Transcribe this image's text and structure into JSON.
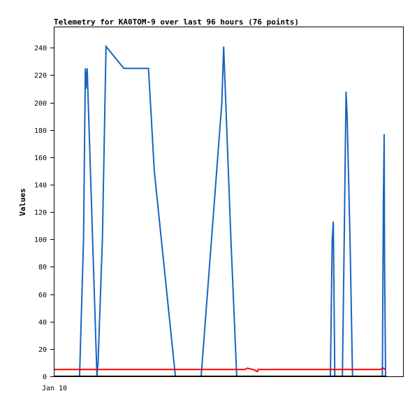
{
  "chart_data": {
    "type": "line",
    "title": "Telemetry for KA0TOM-9 over last 96 hours (76 points)",
    "xlabel": "",
    "ylabel": "Values",
    "x_tick_labels": [
      "Jan 10"
    ],
    "y_ticks": [
      0,
      20,
      40,
      60,
      80,
      100,
      120,
      140,
      160,
      180,
      200,
      220,
      240
    ],
    "xlim": [
      0,
      96
    ],
    "ylim": [
      0,
      255
    ],
    "grid": false,
    "legend": "none",
    "series": [
      {
        "color": "#1565c0",
        "points": [
          [
            3.3,
            0
          ],
          [
            6.9,
            0
          ],
          [
            8.0,
            100
          ],
          [
            8.5,
            225
          ],
          [
            8.7,
            210
          ],
          [
            9.0,
            225
          ],
          [
            11.7,
            0
          ],
          [
            12.0,
            10
          ],
          [
            13.2,
            100
          ],
          [
            14.2,
            241
          ],
          [
            19.1,
            225
          ],
          [
            25.9,
            225
          ],
          [
            27.5,
            150
          ],
          [
            33.3,
            0
          ],
          [
            40.4,
            0
          ],
          [
            46.1,
            200
          ],
          [
            46.6,
            241
          ],
          [
            48.6,
            100
          ],
          [
            50.2,
            0
          ],
          [
            76.0,
            0
          ],
          [
            76.5,
            100
          ],
          [
            76.8,
            113
          ],
          [
            76.9,
            85
          ],
          [
            77.2,
            0
          ],
          [
            79.3,
            0
          ],
          [
            79.8,
            100
          ],
          [
            80.3,
            208
          ],
          [
            80.6,
            190
          ],
          [
            81.4,
            100
          ],
          [
            82.1,
            0
          ],
          [
            90.3,
            0
          ],
          [
            90.6,
            130
          ],
          [
            90.8,
            177
          ],
          [
            90.9,
            88
          ],
          [
            91.2,
            0
          ]
        ]
      },
      {
        "color": "#ff0000",
        "points": [
          [
            0,
            5
          ],
          [
            52.5,
            5
          ],
          [
            53.1,
            6
          ],
          [
            53.7,
            5.5
          ],
          [
            54.7,
            5
          ],
          [
            55.5,
            4
          ],
          [
            55.9,
            3.5
          ],
          [
            56.1,
            5
          ],
          [
            89.6,
            5
          ],
          [
            90.2,
            5.5
          ],
          [
            90.6,
            6
          ],
          [
            91.1,
            5
          ]
        ]
      },
      {
        "color": "#000000",
        "points": [
          [
            0,
            0
          ],
          [
            91.4,
            0
          ]
        ]
      }
    ]
  }
}
